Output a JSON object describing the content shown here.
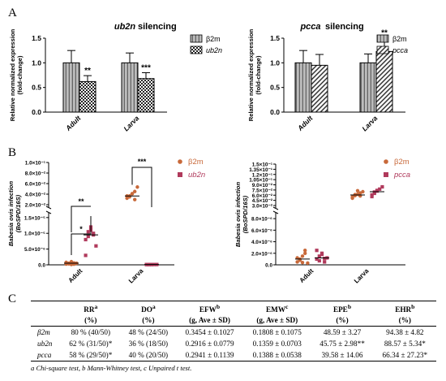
{
  "panel_labels": {
    "a": "A",
    "b": "B",
    "c": "C"
  },
  "colors": {
    "grey_bar": "#a9a9a9",
    "dot_b2m": "#c8693a",
    "dot_target": "#b03a5c",
    "sig_red": "#c03a3a"
  },
  "chart_data": [
    {
      "type": "bar",
      "title": "ub2n silencing",
      "ylabel": "Relative normalized expression (fold-change)",
      "categories": [
        "Adult",
        "Larva"
      ],
      "ylim": [
        0,
        1.5
      ],
      "yticks": [
        "0.0",
        "0.5",
        "1.0",
        "1.5"
      ],
      "legend_position": "top-right",
      "series": [
        {
          "name": "β2m",
          "values": [
            1.0,
            1.0
          ],
          "errors": [
            0.25,
            0.2
          ],
          "pattern": "grey-striped"
        },
        {
          "name": "ub2n",
          "values": [
            0.62,
            0.68
          ],
          "errors": [
            0.12,
            0.12
          ],
          "pattern": "checker"
        }
      ],
      "significance": [
        "**",
        "***"
      ]
    },
    {
      "type": "bar",
      "title": "pcca silencing",
      "ylabel": "Relative normalized expression (fold-change)",
      "categories": [
        "Adult",
        "Larva"
      ],
      "ylim": [
        0,
        1.5
      ],
      "yticks": [
        "0.0",
        "0.5",
        "1.0",
        "1.5"
      ],
      "legend_position": "top-right",
      "series": [
        {
          "name": "β2m",
          "values": [
            1.0,
            1.0
          ],
          "errors": [
            0.25,
            0.18
          ],
          "pattern": "grey-striped"
        },
        {
          "name": "pcca",
          "values": [
            0.95,
            1.23
          ],
          "errors": [
            0.22,
            0.28
          ],
          "pattern": "diagonal"
        }
      ],
      "significance": [
        "",
        "**"
      ]
    },
    {
      "type": "scatter",
      "ylabel": "Babesia ovis infection (BoSPD/16S)",
      "categories": [
        "Adult",
        "Larva"
      ],
      "y_axis": "broken",
      "yticks_lower": [
        "0.0",
        "5.0×10⁻⁶",
        "1.0×10⁻⁵",
        "1.5×10⁻⁵"
      ],
      "yticks_upper": [
        "2.0×10⁻²",
        "4.0×10⁻²",
        "6.0×10⁻²",
        "8.0×10⁻²",
        "1.0×10⁻¹"
      ],
      "legend_position": "top-right",
      "series": [
        {
          "name": "β2m",
          "marker": "circle",
          "adult": [
            2.5e-07,
            5e-07,
            1e-06,
            2e-07,
            5e-07,
            8e-07,
            3e-07,
            1e-07,
            6e-07
          ],
          "adult_median": 5e-07,
          "larva": [
            0.025,
            0.03,
            0.035,
            0.04,
            0.05,
            0.03,
            0.028,
            0.035,
            0.022
          ],
          "larva_median": 0.03
        },
        {
          "name": "ub2n",
          "marker": "square",
          "adult": [
            8e-06,
            9e-06,
            1.1e-05,
            1e-05,
            6e-06,
            3e-06,
            1.05e-05,
            1.2e-05,
            9.5e-06
          ],
          "adult_median": 9.5e-06,
          "larva": [
            1e-07,
            1e-07,
            1e-07,
            1e-07,
            1e-07,
            1e-07,
            1e-07,
            1e-07
          ],
          "larva_median": 1e-07
        }
      ],
      "significance": {
        "adult": [
          "*",
          "**"
        ],
        "larva": "***"
      }
    },
    {
      "type": "scatter",
      "ylabel": "Babesia ovis infection (BoSPD/16S)",
      "categories": [
        "Adult",
        "Larva"
      ],
      "y_axis": "broken",
      "yticks_lower": [
        "0.0",
        "2.0×10⁻⁶",
        "4.0×10⁻⁶",
        "6.0×10⁻⁶",
        "8.0×10⁻⁶"
      ],
      "yticks_upper": [
        "3.0×10⁻²",
        "4.5×10⁻²",
        "6.0×10⁻²",
        "7.5×10⁻²",
        "9.0×10⁻²",
        "1.05×10⁻¹",
        "1.2×10⁻¹",
        "1.35×10⁻¹",
        "1.5×10⁻¹"
      ],
      "legend_position": "top-right",
      "series": [
        {
          "name": "β2m",
          "marker": "circle",
          "adult": [
            5e-07,
            1e-06,
            1.5e-06,
            2.5e-06,
            3e-07,
            1.2e-06,
            8e-07,
            4e-07,
            2e-06
          ],
          "adult_median": 1e-06,
          "larva": [
            0.05,
            0.058,
            0.062,
            0.066,
            0.07,
            0.054,
            0.061,
            0.073,
            0.057
          ],
          "larva_median": 0.06
        },
        {
          "name": "pcca",
          "marker": "square",
          "adult": [
            1e-06,
            1.5e-06,
            2e-06,
            5e-07,
            1.2e-06,
            2.5e-06,
            7e-07,
            1.8e-06,
            1.1e-06
          ],
          "adult_median": 1.2e-06,
          "larva": [
            0.055,
            0.065,
            0.072,
            0.078,
            0.085,
            0.06,
            0.069,
            0.074
          ],
          "larva_median": 0.07
        }
      ]
    }
  ],
  "table": {
    "headers": [
      {
        "main": "RR",
        "sup": "a",
        "sub": "(%)"
      },
      {
        "main": "DO",
        "sup": "a",
        "sub": "(%)"
      },
      {
        "main": "EFW",
        "sup": "b",
        "sub": "(g, Ave ± SD)"
      },
      {
        "main": "EMW",
        "sup": "c",
        "sub": "(g, Ave ± SD)"
      },
      {
        "main": "EPE",
        "sup": "b",
        "sub": "(%)"
      },
      {
        "main": "EHR",
        "sup": "b",
        "sub": "(%)"
      }
    ],
    "rows": [
      {
        "label": "β2m",
        "cells": [
          "80 % (40/50)",
          "48 % (24/50)",
          "0.3454 ± 0.1027",
          "0.1808 ± 0.1075",
          "48.59 ± 3.27",
          "94.38 ± 4.82"
        ]
      },
      {
        "label": "ub2n",
        "cells": [
          "62 % (31/50)*",
          "36 % (18/50)",
          "0.2916 ± 0.0779",
          "0.1359 ± 0.0703",
          "45.75 ± 2.98**",
          "88.57 ± 5.34*"
        ]
      },
      {
        "label": "pcca",
        "cells": [
          "58 % (29/50)*",
          "40 % (20/50)",
          "0.2941 ± 0.1139",
          "0.1388 ± 0.0538",
          "39.58 ± 14.06",
          "66.34 ± 27.23*"
        ]
      }
    ],
    "footnote": "a Chi-square test, b Mann-Whitney test, c Unpaired t test."
  }
}
